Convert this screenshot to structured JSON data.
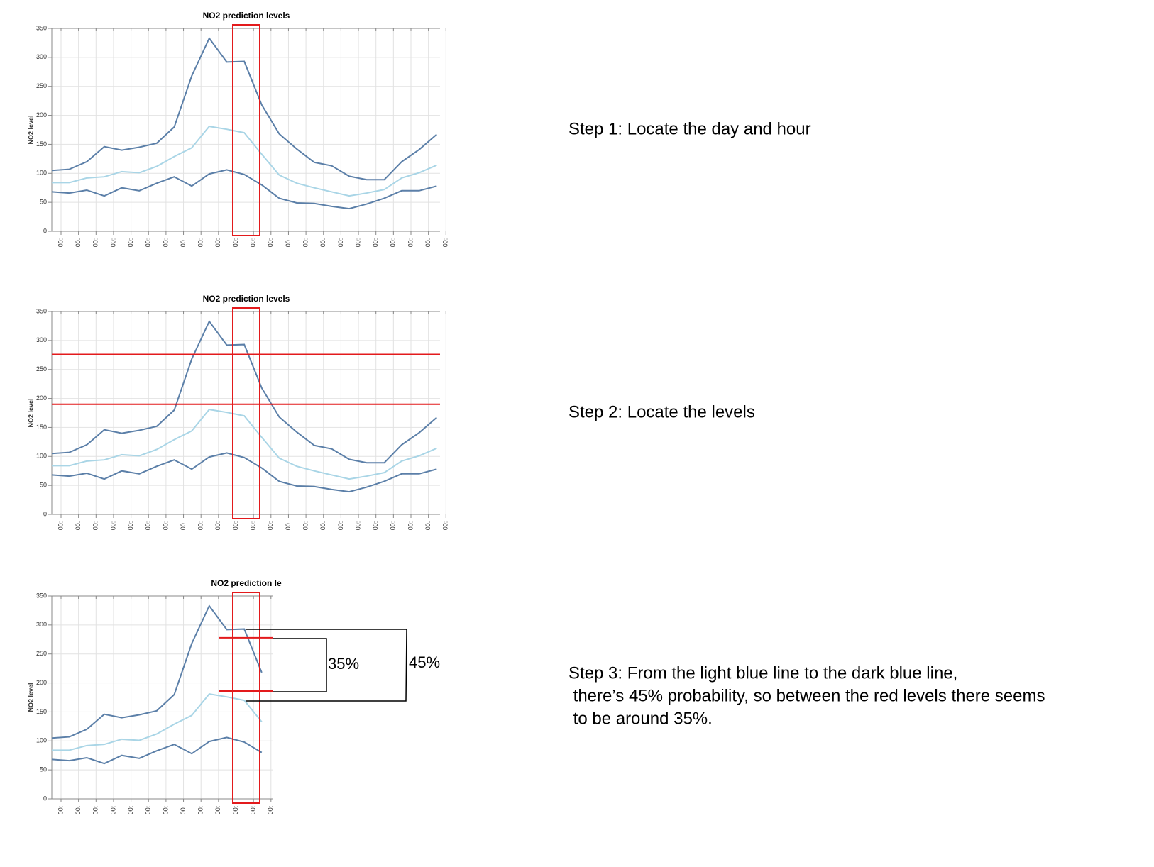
{
  "chart_data": [
    {
      "type": "line",
      "title": "NO2 prediction levels",
      "y_label": "NO2 level",
      "categories": [
        "00:",
        "00:",
        "00:",
        "00:",
        "00:",
        "00:",
        "00:",
        "00:",
        "00:",
        "00:",
        "00:",
        "00:",
        "00:",
        "00:",
        "00:",
        "00:",
        "00:",
        "00:",
        "00:",
        "00:",
        "00:",
        "00:",
        "00:"
      ],
      "ylim": [
        0,
        350
      ],
      "yticks": [
        0,
        50,
        100,
        150,
        200,
        250,
        300,
        350
      ],
      "grid": true,
      "series": [
        {
          "color": "#5b7fa8",
          "values": [
            105,
            107,
            120,
            146,
            140,
            145,
            152,
            180,
            268,
            333,
            292,
            293,
            218,
            168,
            142,
            119,
            113,
            95,
            89,
            89,
            120,
            141,
            167
          ]
        },
        {
          "color": "#a9d5e6",
          "values": [
            84,
            84,
            92,
            94,
            103,
            101,
            112,
            129,
            144,
            181,
            176,
            170,
            133,
            97,
            83,
            75,
            68,
            61,
            66,
            72,
            92,
            101,
            114
          ]
        },
        {
          "color": "#5b7fa8",
          "values": [
            68,
            66,
            71,
            61,
            75,
            70,
            83,
            94,
            78,
            99,
            106,
            98,
            80,
            57,
            49,
            48,
            43,
            39,
            47,
            57,
            70,
            70,
            78
          ]
        }
      ]
    },
    {
      "type": "line",
      "title": "NO2 prediction levels",
      "y_label": "NO2 level",
      "categories": [
        "00:",
        "00:",
        "00:",
        "00:",
        "00:",
        "00:",
        "00:",
        "00:",
        "00:",
        "00:",
        "00:",
        "00:",
        "00:",
        "00:",
        "00:",
        "00:",
        "00:",
        "00:",
        "00:",
        "00:",
        "00:",
        "00:",
        "00:"
      ],
      "ylim": [
        0,
        350
      ],
      "yticks": [
        0,
        50,
        100,
        150,
        200,
        250,
        300,
        350
      ],
      "grid": true,
      "reference_lines": [
        276,
        190
      ],
      "reference_color": "#e31a1c",
      "series": [
        {
          "color": "#5b7fa8",
          "values": [
            105,
            107,
            120,
            146,
            140,
            145,
            152,
            180,
            268,
            333,
            292,
            293,
            218,
            168,
            142,
            119,
            113,
            95,
            89,
            89,
            120,
            141,
            167
          ]
        },
        {
          "color": "#a9d5e6",
          "values": [
            84,
            84,
            92,
            94,
            103,
            101,
            112,
            129,
            144,
            181,
            176,
            170,
            133,
            97,
            83,
            75,
            68,
            61,
            66,
            72,
            92,
            101,
            114
          ]
        },
        {
          "color": "#5b7fa8",
          "values": [
            68,
            66,
            71,
            61,
            75,
            70,
            83,
            94,
            78,
            99,
            106,
            98,
            80,
            57,
            49,
            48,
            43,
            39,
            47,
            57,
            70,
            70,
            78
          ]
        }
      ]
    },
    {
      "type": "line",
      "title": "NO2 prediction le",
      "y_label": "NO2 level",
      "categories": [
        "00:",
        "00:",
        "00:",
        "00:",
        "00:",
        "00:",
        "00:",
        "00:",
        "00:",
        "00:",
        "00:",
        "00:",
        "00:"
      ],
      "ylim": [
        0,
        350
      ],
      "yticks": [
        0,
        50,
        100,
        150,
        200,
        250,
        300,
        350
      ],
      "grid": true,
      "reference_lines": [
        278,
        186
      ],
      "reference_color": "#e31a1c",
      "annotations": [
        "35%",
        "45%"
      ],
      "series": [
        {
          "color": "#5b7fa8",
          "values": [
            105,
            107,
            120,
            146,
            140,
            145,
            152,
            180,
            268,
            333,
            292,
            293,
            218
          ]
        },
        {
          "color": "#a9d5e6",
          "values": [
            84,
            84,
            92,
            94,
            103,
            101,
            112,
            129,
            144,
            181,
            176,
            170,
            133
          ]
        },
        {
          "color": "#5b7fa8",
          "values": [
            68,
            66,
            71,
            61,
            75,
            70,
            83,
            94,
            78,
            99,
            106,
            98,
            80
          ]
        }
      ]
    }
  ],
  "steps": [
    [
      "Step 1: Locate the day and hour"
    ],
    [
      "Step 2: Locate the levels"
    ],
    [
      "Step 3: From the light blue line to the dark blue line,",
      " there’s 45% probability, so between the red levels there seems",
      " to be around 35%."
    ]
  ]
}
